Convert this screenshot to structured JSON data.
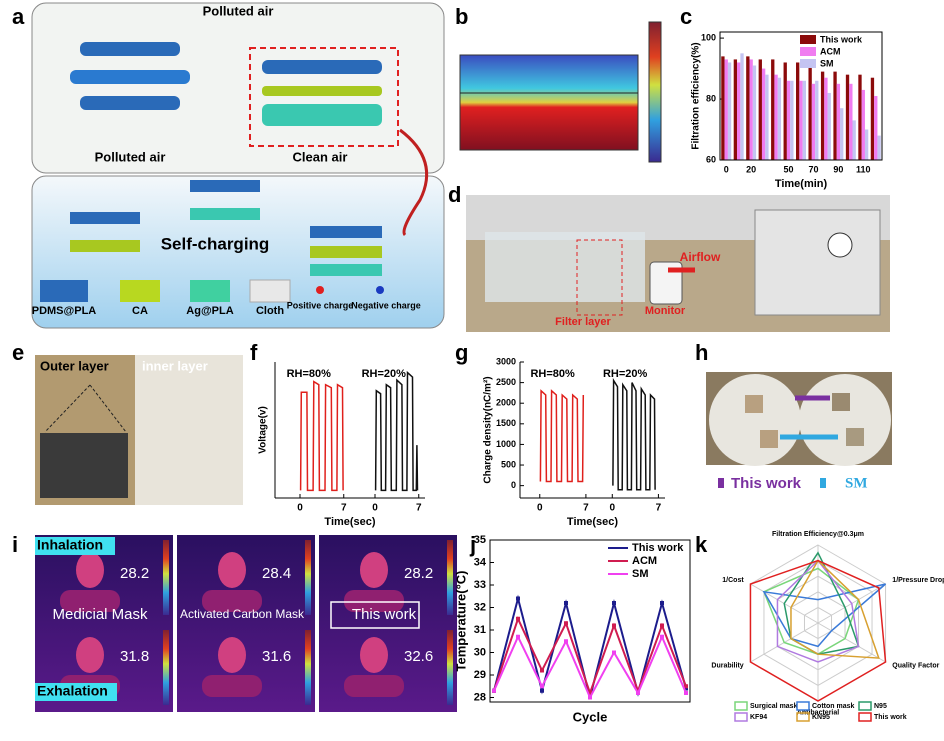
{
  "panel_labels": [
    "a",
    "b",
    "c",
    "d",
    "e",
    "f",
    "g",
    "h",
    "i",
    "j",
    "k"
  ],
  "panel_a": {
    "top_label": "Polluted air",
    "left_label": "Polluted air",
    "right_label": "Clean air",
    "center_label": "Self-charging",
    "legend": [
      "PDMS@PLA",
      "CA",
      "Ag@PLA",
      "Cloth",
      "Positive charge",
      "Negative charge"
    ]
  },
  "panel_d": {
    "labels": [
      "Filter layer",
      "Monitor",
      "Airflow"
    ]
  },
  "panel_e": {
    "labels": [
      "Outer layer",
      "inner layer"
    ]
  },
  "panel_h": {
    "legend": [
      "This work",
      "SM"
    ]
  },
  "panel_i": {
    "rows": [
      "Inhalation",
      "Exhalation"
    ],
    "columns": [
      "Medicial Mask",
      "Activated Carbon Mask",
      "This work"
    ],
    "temperatures": [
      [
        28.2,
        28.4,
        28.2
      ],
      [
        31.8,
        31.6,
        32.6
      ]
    ]
  },
  "chart_data": [
    {
      "type": "bar",
      "y_label": "Filtration efficiency(%)",
      "x_label": "Time(min)",
      "categories": [
        0,
        null,
        20,
        null,
        null,
        50,
        null,
        70,
        null,
        90,
        null,
        110,
        null
      ],
      "series": [
        {
          "name": "This work",
          "color": "#8b0a0a",
          "values": [
            94,
            93,
            94,
            93,
            93,
            92,
            92,
            91,
            89,
            89,
            88,
            88,
            87
          ]
        },
        {
          "name": "ACM",
          "color": "#f07cf0",
          "values": [
            93,
            92,
            93,
            90,
            88,
            86,
            86,
            85,
            87,
            85,
            85,
            83,
            81
          ]
        },
        {
          "name": "SM",
          "color": "#c4c4f2",
          "values": [
            92,
            95,
            91,
            88,
            87,
            86,
            86,
            86,
            82,
            77,
            73,
            70,
            68
          ]
        }
      ],
      "ylim": [
        60,
        102
      ],
      "yticks": [
        60,
        80,
        100
      ],
      "legend": "upper right"
    },
    {
      "type": "split-line",
      "y_label": "Voltage(v)",
      "x_label": "Time(sec)",
      "xlim": [
        -4,
        8
      ],
      "xticks": [
        0,
        7
      ],
      "ylim": [
        -0.5,
        8.5
      ],
      "series": [
        {
          "name": "RH=80%",
          "color": "#e0201c",
          "x": [
            0.1,
            0.2,
            1.1,
            1.2,
            2.1,
            2.2,
            3.0,
            3.1,
            4.0,
            4.1,
            5.0,
            5.1,
            5.9,
            6.0,
            6.8,
            6.9
          ],
          "values": [
            0,
            6.5,
            6.5,
            0,
            0,
            7.2,
            7.0,
            0,
            0,
            7.0,
            6.8,
            0,
            0,
            7.0,
            6.8,
            0
          ]
        },
        {
          "name": "RH=20%",
          "color": "#111111",
          "x": [
            0.1,
            0.2,
            0.9,
            1.0,
            1.7,
            1.8,
            2.5,
            2.6,
            3.4,
            3.5,
            4.3,
            4.4,
            5.1,
            5.2,
            6.0,
            6.1,
            6.6,
            6.7,
            6.8
          ],
          "values": [
            0,
            6.6,
            6.4,
            0,
            0,
            7.0,
            6.8,
            0,
            0,
            7.3,
            7.0,
            0,
            0,
            7.8,
            7.5,
            0,
            0,
            3.0,
            0
          ]
        }
      ]
    },
    {
      "type": "split-line",
      "y_label": "Charge density(nC/m²)",
      "x_label": "Time(sec)",
      "xlim": [
        -3,
        8
      ],
      "xticks": [
        0,
        7
      ],
      "ylim": [
        -300,
        3000
      ],
      "yticks": [
        0,
        500,
        1000,
        1500,
        2000,
        2500,
        3000
      ],
      "series": [
        {
          "name": "RH=80%",
          "color": "#e0201c",
          "x": [
            0.1,
            0.2,
            0.9,
            1.0,
            1.7,
            1.8,
            2.5,
            2.6,
            3.3,
            3.4,
            4.1,
            4.2,
            4.9,
            5.0,
            5.7,
            5.8,
            6.5,
            6.6
          ],
          "values": [
            100,
            2300,
            2200,
            100,
            100,
            2300,
            2200,
            100,
            100,
            2200,
            2100,
            100,
            100,
            2200,
            2100,
            100,
            100,
            2200
          ]
        },
        {
          "name": "RH=20%",
          "color": "#111111",
          "x": [
            0.1,
            0.2,
            0.8,
            0.9,
            1.5,
            1.6,
            2.2,
            2.3,
            2.9,
            3.0,
            3.6,
            3.7,
            4.3,
            4.4,
            5.0,
            5.1,
            5.7,
            5.8,
            6.4,
            6.5
          ],
          "values": [
            0,
            2550,
            2400,
            -100,
            -100,
            2450,
            2300,
            -100,
            -100,
            2500,
            2300,
            -100,
            -100,
            2350,
            2200,
            -100,
            -100,
            2200,
            2100,
            -100
          ]
        }
      ]
    },
    {
      "type": "line",
      "y_label": "Temperature(°C)",
      "x_label": "Cycle",
      "categories": [
        null,
        null,
        null,
        null,
        null,
        null,
        null,
        null,
        null
      ],
      "series": [
        {
          "name": "This work",
          "color": "#1c1c8c",
          "values": [
            28.3,
            32.4,
            28.3,
            32.2,
            28.0,
            32.2,
            28.2,
            32.2,
            28.4
          ]
        },
        {
          "name": "ACM",
          "color": "#d01c50",
          "values": [
            28.3,
            31.5,
            29.2,
            31.3,
            28.2,
            31.2,
            28.3,
            31.2,
            28.5
          ]
        },
        {
          "name": "SM",
          "color": "#f040f0",
          "values": [
            28.3,
            30.7,
            28.5,
            30.5,
            28.0,
            30.0,
            28.2,
            30.7,
            28.2
          ]
        }
      ],
      "ylim": [
        27.8,
        35
      ],
      "yticks": [
        28,
        29,
        30,
        31,
        32,
        33,
        34,
        35
      ],
      "legend": "upper right"
    },
    {
      "type": "radar",
      "axes": [
        "Filtration Efficiency@0.3μm",
        "1/Pressure Drop",
        "Quality Factor",
        "Antibacterial",
        "Durability",
        "1/Cost"
      ],
      "rlim": [
        0,
        5
      ],
      "rticks": [
        1,
        2,
        3,
        4,
        5
      ],
      "series": [
        {
          "name": "Surgical mask",
          "color": "#7ad67a",
          "values": [
            3.5,
            3,
            2,
            2,
            2.5,
            4
          ]
        },
        {
          "name": "Cotton mask",
          "color": "#3a7ad8",
          "values": [
            1.5,
            5,
            1,
            1.5,
            2,
            4
          ]
        },
        {
          "name": "N95",
          "color": "#2a9a6a",
          "values": [
            4.5,
            2,
            3,
            2,
            2,
            2.5
          ]
        },
        {
          "name": "KF94",
          "color": "#b07ae0",
          "values": [
            4,
            2.5,
            3,
            2.5,
            3,
            3
          ]
        },
        {
          "name": "KN95",
          "color": "#d8a030",
          "values": [
            4,
            3,
            4.5,
            2,
            2,
            2
          ]
        },
        {
          "name": "This work",
          "color": "#e02020",
          "values": [
            4,
            4.5,
            5,
            5,
            5,
            5
          ]
        }
      ]
    }
  ]
}
